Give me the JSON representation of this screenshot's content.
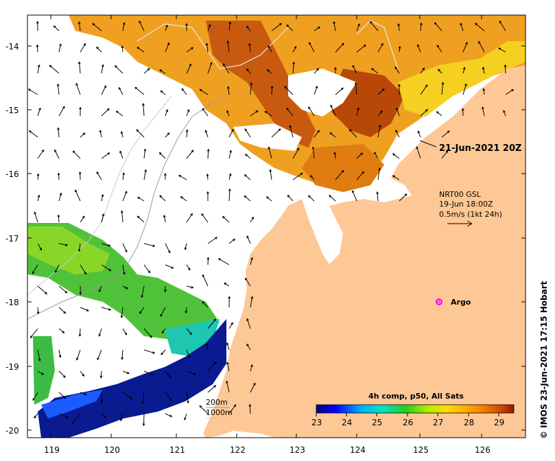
{
  "map": {
    "date_label": "21-Jun-2021 20Z",
    "credit": "© IMOS 23-Jun-2021 17:15 Hobart",
    "argo_label": "Argo",
    "current_legend": {
      "line1": "NRT00 GSL",
      "line2": "19-Jun 18:00Z",
      "line3": "0.5m/s (1kt 24h)"
    },
    "isobaths": {
      "shallow": "200m",
      "deep": "1000m"
    },
    "lat_labels": [
      "-14",
      "-15",
      "-16",
      "-17",
      "-18",
      "-19",
      "-20"
    ],
    "lon_labels": [
      "119",
      "120",
      "121",
      "122",
      "123",
      "124",
      "125",
      "126"
    ]
  },
  "colorbar": {
    "title": "4h comp, p50, All Sats",
    "ticks": [
      "23",
      "24",
      "25",
      "26",
      "27",
      "28",
      "29"
    ],
    "range": [
      23,
      29.5
    ],
    "colors": [
      "#00007f",
      "#0000ff",
      "#00aaff",
      "#00e5cc",
      "#22cc22",
      "#aaee00",
      "#ffdd00",
      "#ffaa00",
      "#ee7700",
      "#cc4400",
      "#8b1a00"
    ]
  },
  "style": {
    "land_color": "#fdc896",
    "marker_color": "#ff00ff"
  }
}
